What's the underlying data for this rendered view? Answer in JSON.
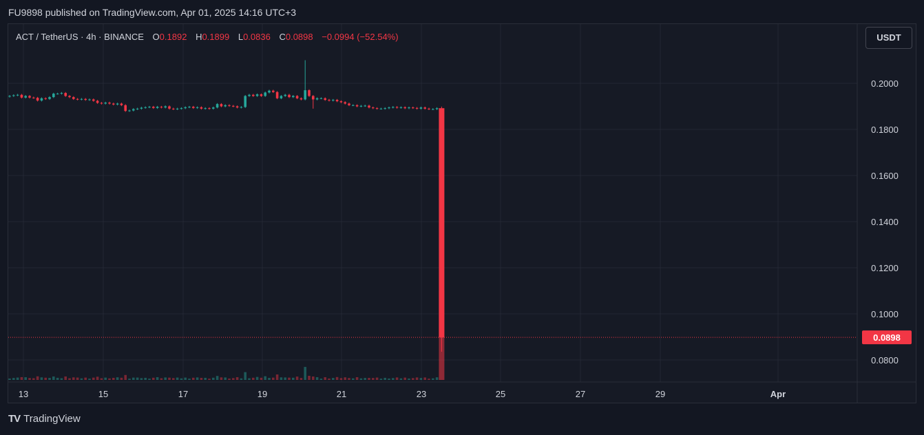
{
  "header": {
    "text": "FU9898 published on TradingView.com, Apr 01, 2025 14:16 UTC+3"
  },
  "legend": {
    "symbol": "ACT / TetherUS · 4h · BINANCE",
    "o_label": "O",
    "o_value": "0.1892",
    "h_label": "H",
    "h_value": "0.1899",
    "l_label": "L",
    "l_value": "0.0836",
    "c_label": "C",
    "c_value": "0.0898",
    "change": "−0.0994 (−52.54%)"
  },
  "currency_button": "USDT",
  "footer": {
    "logo_mark": "TV",
    "logo_text": "TradingView"
  },
  "colors": {
    "up": "#26a69a",
    "down": "#f23645",
    "grid": "#232733",
    "text": "#d1d4dc",
    "background": "#131722"
  },
  "chart_data": {
    "type": "candlestick",
    "symbol": "ACT / TetherUS",
    "interval": "4h",
    "exchange": "BINANCE",
    "y_ticks": [
      "0.2000",
      "0.1800",
      "0.1600",
      "0.1400",
      "0.1200",
      "0.1000",
      "0.0800"
    ],
    "ylim": [
      0.072,
      0.212
    ],
    "x_ticks": [
      "13",
      "15",
      "17",
      "19",
      "21",
      "23",
      "25",
      "27",
      "29",
      "Apr"
    ],
    "last_price": "0.0898",
    "last_price_value": 0.0898,
    "close_levels": [
      0.1945,
      0.1948,
      0.195,
      0.1938,
      0.1945,
      0.1938,
      0.1937,
      0.1925,
      0.1935,
      0.1932,
      0.194,
      0.1955,
      0.1955,
      0.1958,
      0.1945,
      0.194,
      0.1932,
      0.193,
      0.1932,
      0.1928,
      0.193,
      0.1924,
      0.1915,
      0.1912,
      0.1916,
      0.1912,
      0.1908,
      0.1912,
      0.1905,
      0.188,
      0.1882,
      0.1888,
      0.189,
      0.1894,
      0.1896,
      0.1898,
      0.1893,
      0.1898,
      0.1895,
      0.19,
      0.189,
      0.1888,
      0.189,
      0.1892,
      0.1896,
      0.1898,
      0.1893,
      0.1896,
      0.189,
      0.1892,
      0.189,
      0.1895,
      0.191,
      0.19,
      0.1905,
      0.1902,
      0.19,
      0.1895,
      0.1897,
      0.1945,
      0.195,
      0.1945,
      0.1952,
      0.1945,
      0.196,
      0.1968,
      0.1962,
      0.1935,
      0.1945,
      0.195,
      0.194,
      0.1945,
      0.1935,
      0.193,
      0.197,
      0.1945,
      0.193,
      0.1935,
      0.1935,
      0.1928,
      0.1925,
      0.1928,
      0.1922,
      0.1918,
      0.1912,
      0.1905,
      0.1905,
      0.19,
      0.1902,
      0.1903,
      0.1895,
      0.1892,
      0.189,
      0.189,
      0.1892,
      0.1895,
      0.1897,
      0.1894,
      0.1896,
      0.1892,
      0.1895,
      0.1893,
      0.189,
      0.1895,
      0.189,
      0.1888,
      0.1888,
      0.1892
    ],
    "spikes": [
      {
        "index": 74,
        "high": 0.21
      },
      {
        "index": 76,
        "low": 0.189
      }
    ],
    "final_candle": {
      "open": 0.1892,
      "high": 0.1899,
      "low": 0.0836,
      "close": 0.0898
    }
  }
}
